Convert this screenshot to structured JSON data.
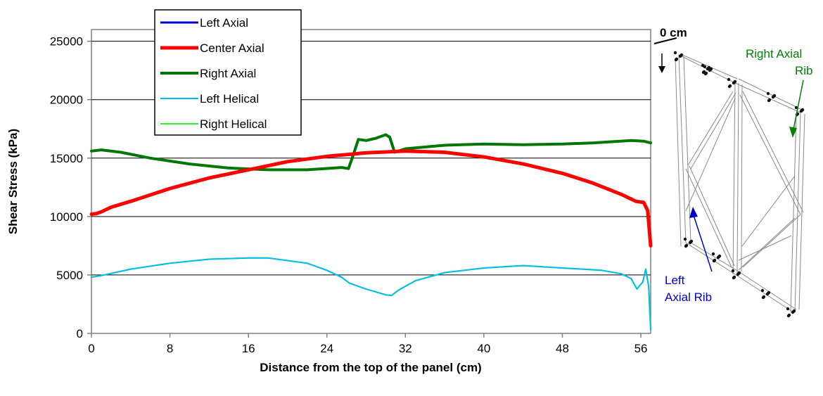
{
  "chart_data": {
    "type": "line",
    "xlabel": "Distance from the top of the panel (cm)",
    "ylabel": "Shear Stress (kPa)",
    "xlim": [
      0,
      57
    ],
    "ylim": [
      0,
      26000
    ],
    "xticks": [
      0,
      8,
      16,
      24,
      32,
      40,
      48,
      56
    ],
    "yticks": [
      0,
      5000,
      10000,
      15000,
      20000,
      25000
    ],
    "x_tick_labels": [
      "0",
      "8",
      "16",
      "24",
      "32",
      "40",
      "48",
      "56"
    ],
    "y_tick_labels": [
      "0",
      "5000",
      "10000",
      "15000",
      "20000",
      "25000"
    ],
    "grid": "horizontal",
    "legend_position": "top-left",
    "series": [
      {
        "name": "Left Axial",
        "color": "#0000cc",
        "width": 3,
        "points": [
          [
            0,
            15600
          ],
          [
            1,
            15700
          ],
          [
            3,
            15500
          ],
          [
            6,
            15000
          ],
          [
            10,
            14500
          ],
          [
            14,
            14150
          ],
          [
            18,
            14000
          ],
          [
            22,
            14000
          ],
          [
            25.5,
            14200
          ],
          [
            26.2,
            14100
          ],
          [
            26.7,
            15300
          ],
          [
            27.2,
            16600
          ],
          [
            28,
            16500
          ],
          [
            29,
            16700
          ],
          [
            30,
            17000
          ],
          [
            30.4,
            16800
          ],
          [
            30.9,
            15500
          ],
          [
            32,
            15800
          ],
          [
            36,
            16100
          ],
          [
            40,
            16200
          ],
          [
            44,
            16150
          ],
          [
            48,
            16200
          ],
          [
            51,
            16300
          ],
          [
            55,
            16500
          ],
          [
            56.3,
            16450
          ],
          [
            57,
            16300
          ]
        ]
      },
      {
        "name": "Center Axial",
        "color": "#ff0000",
        "width": 5,
        "points": [
          [
            0,
            10200
          ],
          [
            0.5,
            10250
          ],
          [
            1,
            10400
          ],
          [
            2,
            10800
          ],
          [
            4,
            11300
          ],
          [
            8,
            12400
          ],
          [
            12,
            13300
          ],
          [
            16,
            14000
          ],
          [
            20,
            14700
          ],
          [
            24,
            15150
          ],
          [
            28,
            15450
          ],
          [
            32,
            15600
          ],
          [
            36,
            15500
          ],
          [
            40,
            15100
          ],
          [
            44,
            14500
          ],
          [
            48,
            13700
          ],
          [
            51,
            12900
          ],
          [
            54,
            11900
          ],
          [
            55.5,
            11300
          ],
          [
            56.3,
            11200
          ],
          [
            56.7,
            10500
          ],
          [
            57,
            7500
          ]
        ]
      },
      {
        "name": "Right Axial",
        "color": "#007700",
        "width": 4,
        "points": [
          [
            0,
            15600
          ],
          [
            1,
            15700
          ],
          [
            3,
            15500
          ],
          [
            6,
            15000
          ],
          [
            10,
            14500
          ],
          [
            14,
            14150
          ],
          [
            18,
            14000
          ],
          [
            22,
            14000
          ],
          [
            25.5,
            14200
          ],
          [
            26.2,
            14100
          ],
          [
            26.7,
            15300
          ],
          [
            27.2,
            16600
          ],
          [
            28,
            16500
          ],
          [
            29,
            16700
          ],
          [
            30,
            17000
          ],
          [
            30.4,
            16800
          ],
          [
            30.9,
            15500
          ],
          [
            32,
            15800
          ],
          [
            36,
            16100
          ],
          [
            40,
            16200
          ],
          [
            44,
            16150
          ],
          [
            48,
            16200
          ],
          [
            51,
            16300
          ],
          [
            55,
            16500
          ],
          [
            56.3,
            16450
          ],
          [
            57,
            16300
          ]
        ]
      },
      {
        "name": "Left Helical",
        "color": "#00bbee",
        "width": 2,
        "points": [
          [
            0,
            4800
          ],
          [
            1,
            4950
          ],
          [
            4,
            5500
          ],
          [
            8,
            6000
          ],
          [
            12,
            6350
          ],
          [
            16,
            6450
          ],
          [
            18,
            6450
          ],
          [
            22,
            6000
          ],
          [
            24,
            5400
          ],
          [
            25.5,
            4800
          ],
          [
            26.3,
            4300
          ],
          [
            28,
            3800
          ],
          [
            30,
            3300
          ],
          [
            30.6,
            3250
          ],
          [
            31.3,
            3700
          ],
          [
            33,
            4500
          ],
          [
            36,
            5200
          ],
          [
            40,
            5600
          ],
          [
            44,
            5800
          ],
          [
            48,
            5600
          ],
          [
            52,
            5400
          ],
          [
            54,
            5100
          ],
          [
            55,
            4700
          ],
          [
            55.6,
            3800
          ],
          [
            56.2,
            4400
          ],
          [
            56.5,
            5500
          ],
          [
            56.8,
            4000
          ],
          [
            57,
            300
          ]
        ]
      },
      {
        "name": "Right Helical",
        "color": "#33ee33",
        "width": 2,
        "points": [
          [
            0,
            4800
          ],
          [
            1,
            4950
          ],
          [
            4,
            5500
          ],
          [
            8,
            6000
          ],
          [
            12,
            6350
          ],
          [
            16,
            6450
          ],
          [
            18,
            6450
          ],
          [
            22,
            6000
          ],
          [
            24,
            5400
          ],
          [
            25.5,
            4800
          ],
          [
            26.3,
            4300
          ],
          [
            28,
            3800
          ],
          [
            30,
            3300
          ],
          [
            30.6,
            3250
          ],
          [
            31.3,
            3700
          ],
          [
            33,
            4500
          ],
          [
            36,
            5200
          ],
          [
            40,
            5600
          ],
          [
            44,
            5800
          ],
          [
            48,
            5600
          ],
          [
            52,
            5400
          ],
          [
            54,
            5100
          ],
          [
            55,
            4700
          ],
          [
            55.6,
            3800
          ],
          [
            56.2,
            4400
          ],
          [
            56.5,
            5500
          ],
          [
            56.8,
            4000
          ],
          [
            57,
            300
          ]
        ]
      }
    ]
  },
  "diagram": {
    "top_label": "0 cm",
    "right_rib_label": [
      "Right Axial",
      "Rib"
    ],
    "left_rib_label": [
      "Left",
      "Axial Rib"
    ],
    "right_rib_color": "#008000",
    "left_rib_color": "#0000cc"
  }
}
